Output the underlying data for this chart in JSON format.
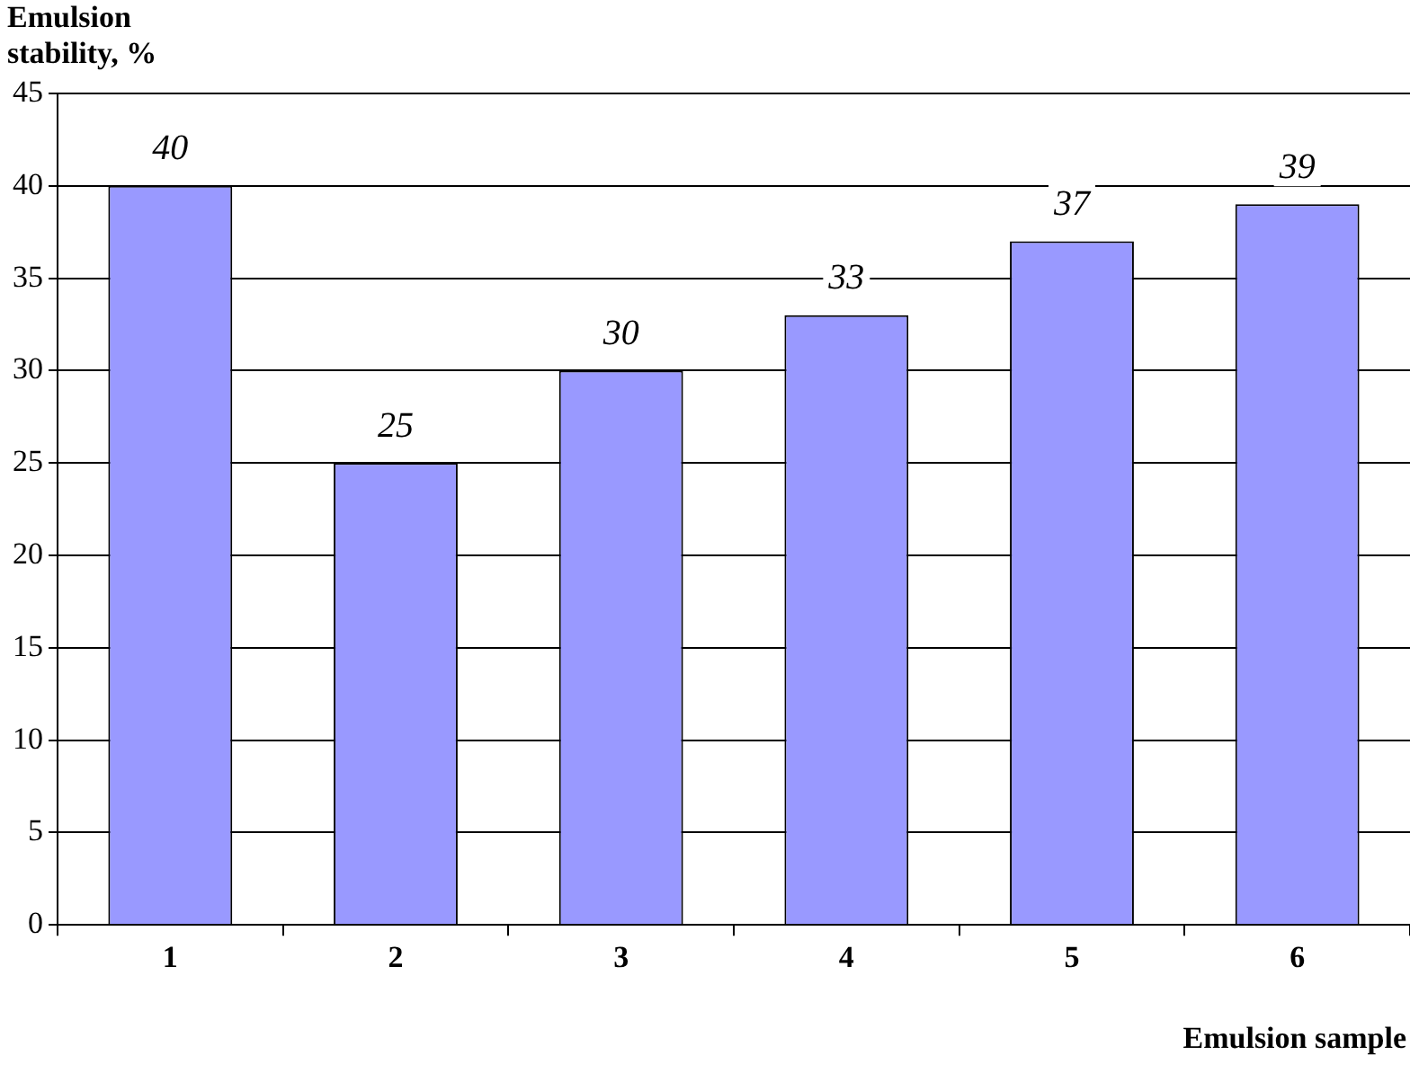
{
  "chart_data": {
    "type": "bar",
    "ylabel": "Emulsion stability, %",
    "xlabel": "Emulsion sample",
    "categories": [
      "1",
      "2",
      "3",
      "4",
      "5",
      "6"
    ],
    "values": [
      40,
      25,
      30,
      33,
      37,
      39
    ],
    "color": "#9999ff",
    "ylim": [
      0,
      45
    ],
    "yticks": [
      0,
      5,
      10,
      15,
      20,
      25,
      30,
      35,
      40,
      45
    ],
    "grid": "y",
    "data_labels": true
  }
}
